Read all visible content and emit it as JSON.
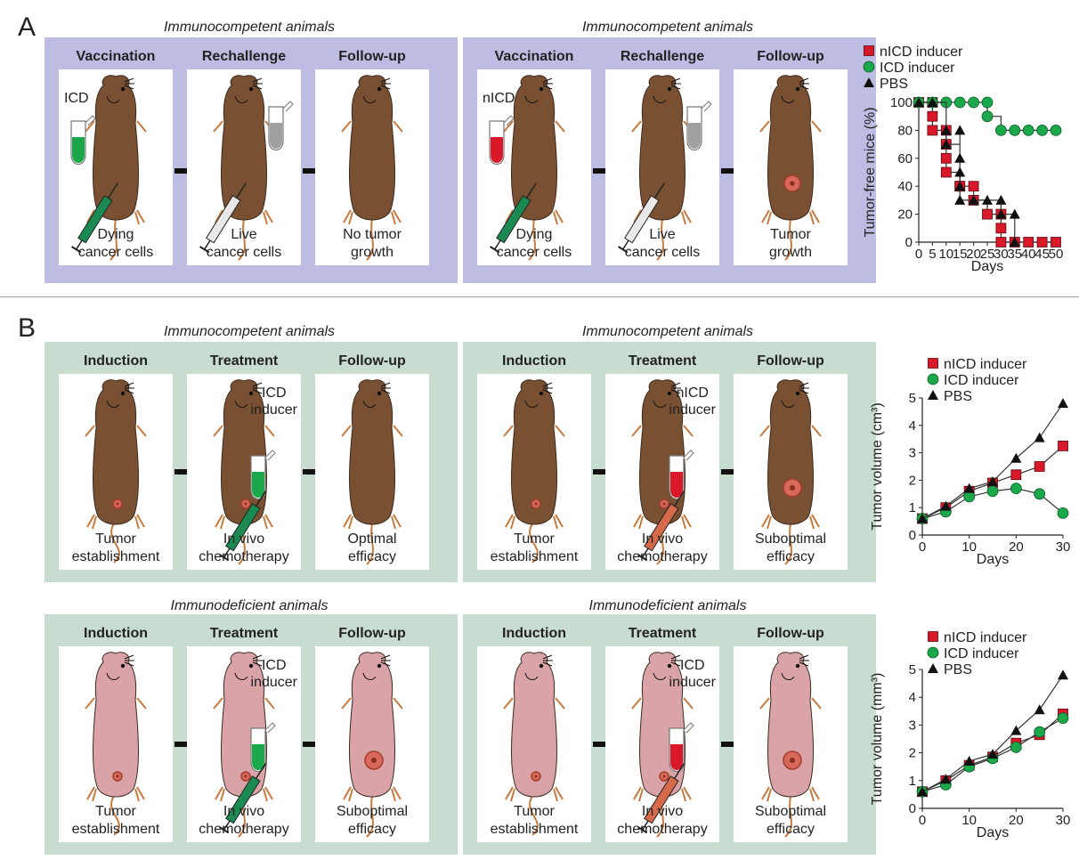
{
  "panels": [
    {
      "letter": "A",
      "groups": [
        {
          "title": "Immunocompetent animals",
          "theme": "purple",
          "steps": [
            {
              "header": "Vaccination",
              "caption_lines": [
                "Dying",
                "cancer cells"
              ],
              "tube_label": "ICD",
              "tube_color": "#1aa84a"
            },
            {
              "header": "Rechallenge",
              "caption_lines": [
                "Live",
                "cancer cells"
              ],
              "tube_color": "#a0a0a0"
            },
            {
              "header": "Follow-up",
              "caption_lines": [
                "No tumor",
                "growth"
              ]
            }
          ]
        },
        {
          "title": "Immunocompetent animals",
          "theme": "purple",
          "steps": [
            {
              "header": "Vaccination",
              "caption_lines": [
                "Dying",
                "cancer cells"
              ],
              "tube_label": "nICD",
              "tube_color": "#d9182a"
            },
            {
              "header": "Rechallenge",
              "caption_lines": [
                "Live",
                "cancer cells"
              ],
              "tube_color": "#a0a0a0"
            },
            {
              "header": "Follow-up",
              "caption_lines": [
                "Tumor",
                "growth"
              ]
            }
          ]
        }
      ]
    },
    {
      "letter": "B",
      "groups": [
        {
          "title": "Immunocompetent animals",
          "theme": "green",
          "steps": [
            {
              "header": "Induction",
              "caption_lines": [
                "Tumor",
                "establishment"
              ]
            },
            {
              "header": "Treatment",
              "caption_lines": [
                "In vivo",
                "chemotherapy"
              ],
              "inducer_lines": [
                "ICD",
                "inducer"
              ],
              "tube_color": "#1aa84a"
            },
            {
              "header": "Follow-up",
              "caption_lines": [
                "Optimal",
                "efficacy"
              ]
            }
          ]
        },
        {
          "title": "Immunocompetent animals",
          "theme": "green",
          "steps": [
            {
              "header": "Induction",
              "caption_lines": [
                "Tumor",
                "establishment"
              ]
            },
            {
              "header": "Treatment",
              "caption_lines": [
                "In vivo",
                "chemotherapy"
              ],
              "inducer_lines": [
                "nICD",
                "inducer"
              ],
              "tube_color": "#d9182a"
            },
            {
              "header": "Follow-up",
              "caption_lines": [
                "Suboptimal",
                "efficacy"
              ]
            }
          ]
        },
        {
          "title": "Immunodeficient animals",
          "theme": "green",
          "steps": [
            {
              "header": "Induction",
              "caption_lines": [
                "Tumor",
                "establishment"
              ]
            },
            {
              "header": "Treatment",
              "caption_lines": [
                "In vivo",
                "chemotherapy"
              ],
              "inducer_lines": [
                "ICD",
                "inducer"
              ],
              "tube_color": "#1aa84a"
            },
            {
              "header": "Follow-up",
              "caption_lines": [
                "Suboptimal",
                "efficacy"
              ]
            }
          ]
        },
        {
          "title": "Immunodeficient animals",
          "theme": "green",
          "steps": [
            {
              "header": "Induction",
              "caption_lines": [
                "Tumor",
                "establishment"
              ]
            },
            {
              "header": "Treatment",
              "caption_lines": [
                "In vivo",
                "chemotherapy"
              ],
              "inducer_lines": [
                "ICD",
                "inducer"
              ],
              "tube_color": "#d9182a"
            },
            {
              "header": "Follow-up",
              "caption_lines": [
                "Suboptimal",
                "efficacy"
              ]
            }
          ]
        }
      ]
    }
  ],
  "colors": {
    "brown_mouse": "#7a5032",
    "pink_mouse": "#d9a3a7",
    "series_red": "#d9182a",
    "series_green": "#1aa84a",
    "series_black": "#111111"
  },
  "chart_data": [
    {
      "type": "line",
      "xlabel": "Days",
      "ylabel": "Tumor-free mice (%)",
      "xlim": [
        0,
        50
      ],
      "ylim": [
        0,
        100
      ],
      "xticks": [
        0,
        5,
        10,
        15,
        20,
        25,
        30,
        35,
        40,
        45,
        50
      ],
      "yticks": [
        0,
        20,
        40,
        60,
        80,
        100
      ],
      "step": true,
      "series": [
        {
          "name": "nICD inducer",
          "marker": "square",
          "color": "#d9182a",
          "x": [
            0,
            5,
            5,
            5,
            10,
            10,
            10,
            10,
            15,
            15,
            20,
            20,
            25,
            30,
            30,
            30,
            35,
            40,
            45,
            50
          ],
          "y": [
            100,
            100,
            90,
            80,
            80,
            70,
            60,
            50,
            40,
            40,
            40,
            30,
            20,
            20,
            10,
            0,
            0,
            0,
            0,
            0
          ]
        },
        {
          "name": "ICD inducer",
          "marker": "circle",
          "color": "#1aa84a",
          "x": [
            0,
            5,
            10,
            15,
            20,
            25,
            25,
            30,
            35,
            40,
            45,
            50
          ],
          "y": [
            100,
            100,
            100,
            100,
            100,
            100,
            90,
            80,
            80,
            80,
            80,
            80
          ]
        },
        {
          "name": "PBS",
          "marker": "triangle",
          "color": "#111111",
          "x": [
            0,
            5,
            10,
            10,
            15,
            15,
            15,
            15,
            15,
            20,
            25,
            30,
            30,
            35,
            35
          ],
          "y": [
            100,
            100,
            80,
            70,
            80,
            60,
            50,
            40,
            30,
            30,
            30,
            30,
            20,
            20,
            0
          ]
        }
      ]
    },
    {
      "type": "line",
      "xlabel": "Days",
      "ylabel": "Tumor  volume (cm³)",
      "xlim": [
        0,
        30
      ],
      "ylim": [
        0,
        5
      ],
      "xticks": [
        0,
        10,
        20,
        30
      ],
      "yticks": [
        0,
        1,
        2,
        3,
        4,
        5
      ],
      "series": [
        {
          "name": "nICD inducer",
          "marker": "square",
          "color": "#d9182a",
          "x": [
            0,
            5,
            10,
            15,
            20,
            25,
            30
          ],
          "y": [
            0.6,
            1.0,
            1.6,
            1.9,
            2.2,
            2.5,
            3.25
          ]
        },
        {
          "name": "ICD inducer",
          "marker": "circle",
          "color": "#1aa84a",
          "x": [
            0,
            5,
            10,
            15,
            20,
            25,
            30
          ],
          "y": [
            0.6,
            0.85,
            1.4,
            1.6,
            1.7,
            1.5,
            0.8
          ]
        },
        {
          "name": "PBS",
          "marker": "triangle",
          "color": "#111111",
          "x": [
            0,
            5,
            10,
            15,
            20,
            25,
            30
          ],
          "y": [
            0.6,
            1.05,
            1.7,
            1.95,
            2.8,
            3.55,
            4.8
          ]
        }
      ]
    },
    {
      "type": "line",
      "xlabel": "Days",
      "ylabel": "Tumor  volume (mm³)",
      "xlim": [
        0,
        30
      ],
      "ylim": [
        0,
        5
      ],
      "xticks": [
        0,
        10,
        20,
        30
      ],
      "yticks": [
        0,
        1,
        2,
        3,
        4,
        5
      ],
      "series": [
        {
          "name": "nICD inducer",
          "marker": "square",
          "color": "#d9182a",
          "x": [
            0,
            5,
            10,
            15,
            20,
            25,
            30
          ],
          "y": [
            0.6,
            1.0,
            1.55,
            1.85,
            2.35,
            2.65,
            3.4
          ]
        },
        {
          "name": "ICD inducer",
          "marker": "circle",
          "color": "#1aa84a",
          "x": [
            0,
            5,
            10,
            15,
            20,
            25,
            30
          ],
          "y": [
            0.6,
            0.85,
            1.5,
            1.8,
            2.2,
            2.75,
            3.25
          ]
        },
        {
          "name": "PBS",
          "marker": "triangle",
          "color": "#111111",
          "x": [
            0,
            5,
            10,
            15,
            20,
            25,
            30
          ],
          "y": [
            0.6,
            1.05,
            1.7,
            1.95,
            2.8,
            3.55,
            4.8
          ]
        }
      ]
    }
  ]
}
